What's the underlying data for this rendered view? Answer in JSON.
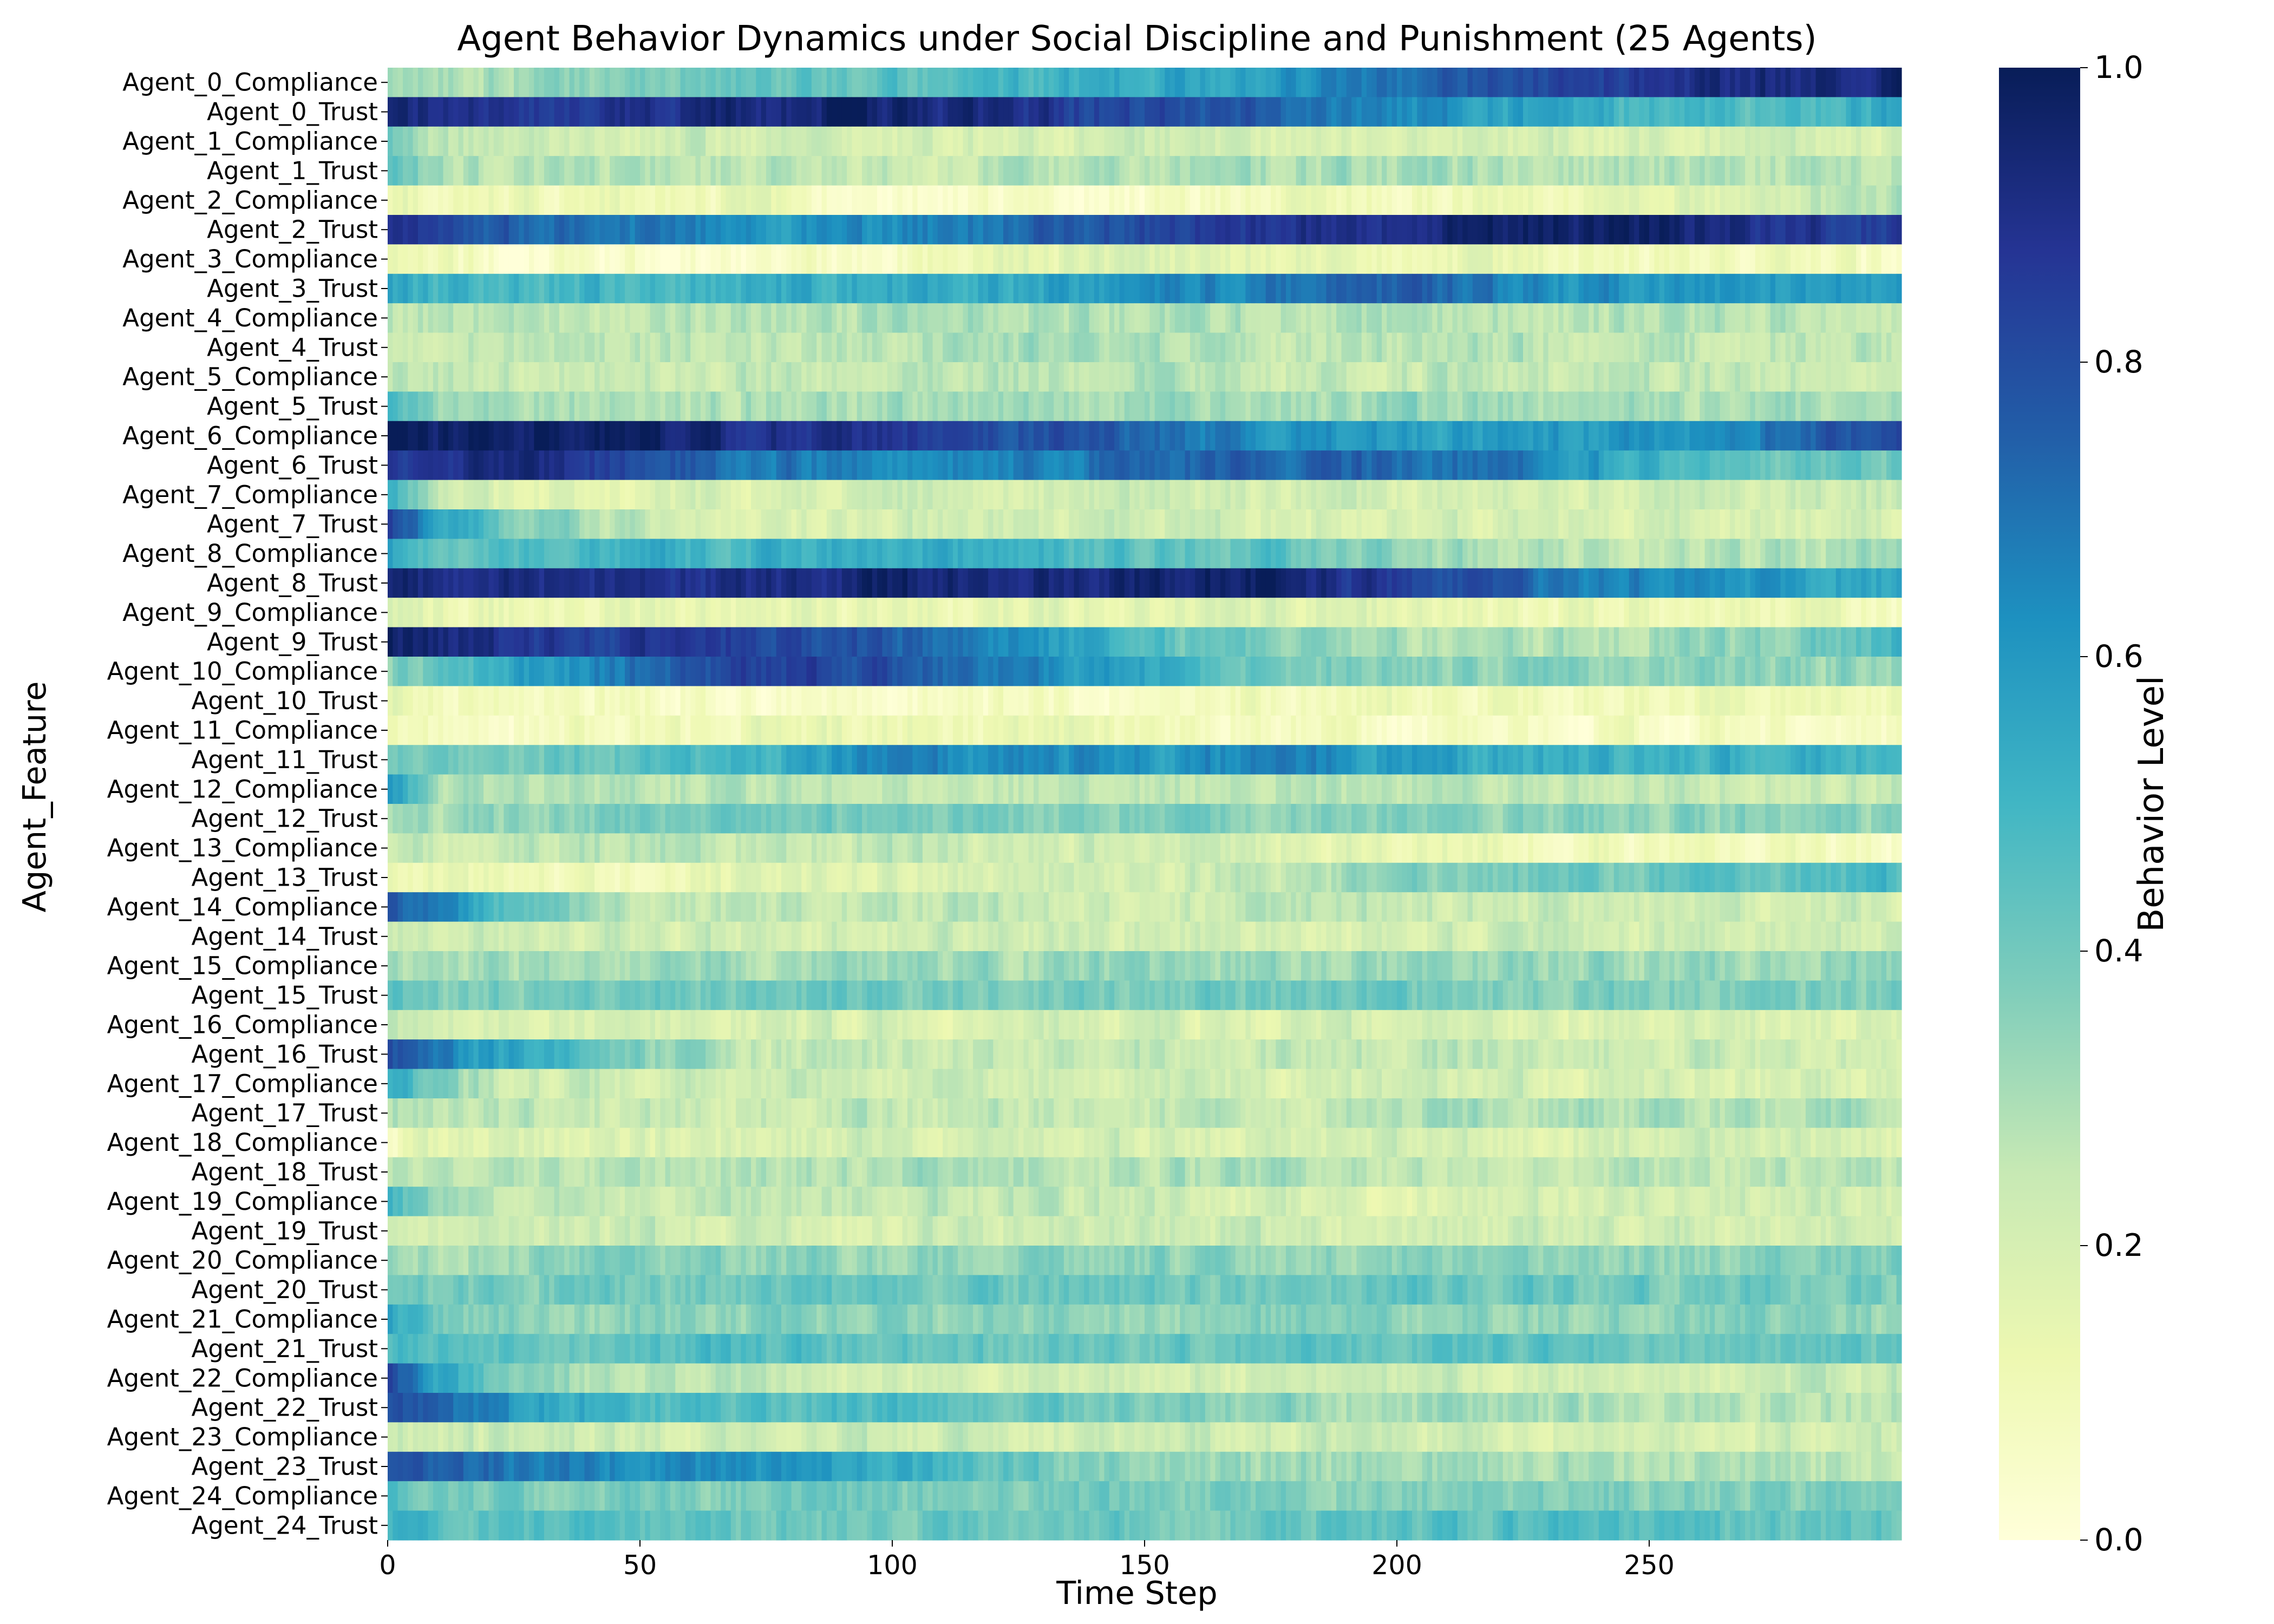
{
  "chart_data": {
    "type": "heatmap",
    "title": "Agent Behavior Dynamics under Social Discipline and Punishment (25 Agents)",
    "xlabel": "Time Step",
    "ylabel": "Agent_Feature",
    "xlim": [
      0,
      300
    ],
    "x_ticks": [
      "0",
      "50",
      "100",
      "150",
      "200",
      "250"
    ],
    "colorscale": "YlGnBu",
    "colorbar": {
      "label": "Behavior Level",
      "range": [
        0.0,
        1.0
      ],
      "ticks": [
        "0.0",
        "0.2",
        "0.4",
        "0.6",
        "0.8",
        "1.0"
      ]
    },
    "knot_steps": [
      0,
      10,
      25,
      50,
      75,
      100,
      125,
      150,
      175,
      200,
      225,
      250,
      275,
      299
    ],
    "rows": [
      {
        "label": "Agent_0_Compliance",
        "values": [
          0.3,
          0.3,
          0.32,
          0.38,
          0.45,
          0.42,
          0.48,
          0.55,
          0.6,
          0.7,
          0.82,
          0.88,
          0.92,
          0.97
        ]
      },
      {
        "label": "Agent_0_Trust",
        "values": [
          0.95,
          0.92,
          0.88,
          0.9,
          0.93,
          0.96,
          0.88,
          0.8,
          0.75,
          0.65,
          0.55,
          0.48,
          0.45,
          0.55
        ]
      },
      {
        "label": "Agent_1_Compliance",
        "values": [
          0.4,
          0.25,
          0.22,
          0.22,
          0.2,
          0.2,
          0.2,
          0.22,
          0.2,
          0.2,
          0.2,
          0.2,
          0.2,
          0.2
        ]
      },
      {
        "label": "Agent_1_Trust",
        "values": [
          0.45,
          0.3,
          0.28,
          0.28,
          0.27,
          0.25,
          0.27,
          0.28,
          0.3,
          0.3,
          0.28,
          0.28,
          0.27,
          0.27
        ]
      },
      {
        "label": "Agent_2_Compliance",
        "values": [
          0.15,
          0.12,
          0.12,
          0.12,
          0.1,
          0.05,
          0.05,
          0.05,
          0.1,
          0.1,
          0.12,
          0.15,
          0.22,
          0.3
        ]
      },
      {
        "label": "Agent_2_Trust",
        "values": [
          0.85,
          0.8,
          0.75,
          0.68,
          0.6,
          0.62,
          0.72,
          0.82,
          0.88,
          0.94,
          0.96,
          0.97,
          0.9,
          0.85
        ]
      },
      {
        "label": "Agent_3_Compliance",
        "values": [
          0.12,
          0.08,
          0.06,
          0.05,
          0.04,
          0.08,
          0.15,
          0.18,
          0.15,
          0.12,
          0.12,
          0.1,
          0.08,
          0.05
        ]
      },
      {
        "label": "Agent_3_Trust",
        "values": [
          0.55,
          0.5,
          0.48,
          0.5,
          0.52,
          0.55,
          0.55,
          0.62,
          0.7,
          0.75,
          0.65,
          0.6,
          0.58,
          0.58
        ]
      },
      {
        "label": "Agent_4_Compliance",
        "values": [
          0.28,
          0.28,
          0.25,
          0.25,
          0.28,
          0.3,
          0.3,
          0.28,
          0.28,
          0.28,
          0.27,
          0.28,
          0.3,
          0.27
        ]
      },
      {
        "label": "Agent_4_Trust",
        "values": [
          0.25,
          0.25,
          0.27,
          0.25,
          0.25,
          0.28,
          0.3,
          0.28,
          0.25,
          0.27,
          0.27,
          0.25,
          0.27,
          0.25
        ]
      },
      {
        "label": "Agent_5_Compliance",
        "values": [
          0.28,
          0.25,
          0.25,
          0.25,
          0.25,
          0.25,
          0.27,
          0.27,
          0.25,
          0.25,
          0.25,
          0.25,
          0.25,
          0.25
        ]
      },
      {
        "label": "Agent_5_Trust",
        "values": [
          0.5,
          0.3,
          0.3,
          0.3,
          0.3,
          0.3,
          0.3,
          0.32,
          0.3,
          0.32,
          0.32,
          0.3,
          0.3,
          0.3
        ]
      },
      {
        "label": "Agent_6_Compliance",
        "values": [
          0.98,
          0.98,
          0.98,
          0.96,
          0.9,
          0.88,
          0.8,
          0.72,
          0.62,
          0.58,
          0.58,
          0.62,
          0.7,
          0.85
        ]
      },
      {
        "label": "Agent_6_Trust",
        "values": [
          0.85,
          0.88,
          0.92,
          0.8,
          0.7,
          0.65,
          0.68,
          0.72,
          0.74,
          0.72,
          0.68,
          0.52,
          0.42,
          0.4
        ]
      },
      {
        "label": "Agent_7_Compliance",
        "values": [
          0.5,
          0.25,
          0.15,
          0.18,
          0.2,
          0.22,
          0.22,
          0.22,
          0.22,
          0.22,
          0.22,
          0.22,
          0.22,
          0.22
        ]
      },
      {
        "label": "Agent_7_Trust",
        "values": [
          0.82,
          0.58,
          0.38,
          0.25,
          0.2,
          0.2,
          0.22,
          0.22,
          0.2,
          0.2,
          0.2,
          0.2,
          0.2,
          0.2
        ]
      },
      {
        "label": "Agent_8_Compliance",
        "values": [
          0.58,
          0.42,
          0.48,
          0.52,
          0.5,
          0.55,
          0.5,
          0.45,
          0.45,
          0.35,
          0.28,
          0.28,
          0.28,
          0.3
        ]
      },
      {
        "label": "Agent_8_Trust",
        "values": [
          0.95,
          0.9,
          0.92,
          0.88,
          0.9,
          0.96,
          0.92,
          0.95,
          0.96,
          0.85,
          0.72,
          0.65,
          0.6,
          0.55
        ]
      },
      {
        "label": "Agent_9_Compliance",
        "values": [
          0.22,
          0.15,
          0.12,
          0.15,
          0.15,
          0.12,
          0.15,
          0.15,
          0.18,
          0.15,
          0.12,
          0.12,
          0.12,
          0.1
        ]
      },
      {
        "label": "Agent_9_Trust",
        "values": [
          0.98,
          0.95,
          0.88,
          0.85,
          0.85,
          0.75,
          0.62,
          0.45,
          0.35,
          0.3,
          0.28,
          0.3,
          0.35,
          0.5
        ]
      },
      {
        "label": "Agent_10_Compliance",
        "values": [
          0.35,
          0.45,
          0.55,
          0.7,
          0.85,
          0.8,
          0.65,
          0.55,
          0.4,
          0.35,
          0.35,
          0.35,
          0.35,
          0.35
        ]
      },
      {
        "label": "Agent_10_Trust",
        "values": [
          0.15,
          0.1,
          0.08,
          0.08,
          0.06,
          0.05,
          0.06,
          0.08,
          0.1,
          0.12,
          0.12,
          0.12,
          0.12,
          0.12
        ]
      },
      {
        "label": "Agent_11_Compliance",
        "values": [
          0.1,
          0.06,
          0.05,
          0.08,
          0.12,
          0.12,
          0.12,
          0.1,
          0.08,
          0.06,
          0.06,
          0.08,
          0.06,
          0.06
        ]
      },
      {
        "label": "Agent_11_Trust",
        "values": [
          0.42,
          0.38,
          0.4,
          0.45,
          0.52,
          0.65,
          0.62,
          0.6,
          0.68,
          0.58,
          0.52,
          0.5,
          0.52,
          0.52
        ]
      },
      {
        "label": "Agent_12_Compliance",
        "values": [
          0.6,
          0.3,
          0.28,
          0.28,
          0.27,
          0.25,
          0.25,
          0.25,
          0.27,
          0.27,
          0.25,
          0.25,
          0.25,
          0.25
        ]
      },
      {
        "label": "Agent_12_Trust",
        "values": [
          0.32,
          0.3,
          0.35,
          0.38,
          0.38,
          0.38,
          0.38,
          0.38,
          0.38,
          0.38,
          0.36,
          0.36,
          0.35,
          0.35
        ]
      },
      {
        "label": "Agent_13_Compliance",
        "values": [
          0.25,
          0.25,
          0.25,
          0.28,
          0.25,
          0.25,
          0.22,
          0.22,
          0.2,
          0.15,
          0.12,
          0.1,
          0.1,
          0.08
        ]
      },
      {
        "label": "Agent_13_Trust",
        "values": [
          0.15,
          0.12,
          0.1,
          0.1,
          0.15,
          0.2,
          0.22,
          0.22,
          0.25,
          0.35,
          0.4,
          0.42,
          0.45,
          0.48
        ]
      },
      {
        "label": "Agent_14_Compliance",
        "values": [
          0.82,
          0.62,
          0.45,
          0.25,
          0.25,
          0.25,
          0.25,
          0.22,
          0.25,
          0.25,
          0.25,
          0.22,
          0.22,
          0.22
        ]
      },
      {
        "label": "Agent_14_Trust",
        "values": [
          0.22,
          0.22,
          0.22,
          0.22,
          0.22,
          0.22,
          0.22,
          0.22,
          0.2,
          0.22,
          0.22,
          0.22,
          0.22,
          0.22
        ]
      },
      {
        "label": "Agent_15_Compliance",
        "values": [
          0.3,
          0.3,
          0.32,
          0.32,
          0.32,
          0.32,
          0.32,
          0.32,
          0.32,
          0.32,
          0.32,
          0.32,
          0.32,
          0.35
        ]
      },
      {
        "label": "Agent_15_Trust",
        "values": [
          0.45,
          0.38,
          0.38,
          0.4,
          0.42,
          0.4,
          0.4,
          0.4,
          0.4,
          0.4,
          0.38,
          0.38,
          0.38,
          0.38
        ]
      },
      {
        "label": "Agent_16_Compliance",
        "values": [
          0.25,
          0.22,
          0.2,
          0.2,
          0.2,
          0.2,
          0.2,
          0.2,
          0.2,
          0.2,
          0.2,
          0.2,
          0.2,
          0.2
        ]
      },
      {
        "label": "Agent_16_Trust",
        "values": [
          0.8,
          0.65,
          0.55,
          0.38,
          0.25,
          0.25,
          0.25,
          0.25,
          0.25,
          0.25,
          0.25,
          0.25,
          0.22,
          0.22
        ]
      },
      {
        "label": "Agent_17_Compliance",
        "values": [
          0.55,
          0.35,
          0.22,
          0.22,
          0.22,
          0.22,
          0.22,
          0.22,
          0.2,
          0.2,
          0.2,
          0.2,
          0.2,
          0.2
        ]
      },
      {
        "label": "Agent_17_Trust",
        "values": [
          0.3,
          0.28,
          0.25,
          0.25,
          0.25,
          0.25,
          0.25,
          0.25,
          0.25,
          0.28,
          0.32,
          0.3,
          0.28,
          0.28
        ]
      },
      {
        "label": "Agent_18_Compliance",
        "values": [
          0.1,
          0.15,
          0.18,
          0.18,
          0.2,
          0.2,
          0.2,
          0.2,
          0.2,
          0.2,
          0.2,
          0.2,
          0.2,
          0.2
        ]
      },
      {
        "label": "Agent_18_Trust",
        "values": [
          0.25,
          0.25,
          0.28,
          0.28,
          0.28,
          0.3,
          0.3,
          0.28,
          0.3,
          0.25,
          0.25,
          0.25,
          0.25,
          0.25
        ]
      },
      {
        "label": "Agent_19_Compliance",
        "values": [
          0.48,
          0.3,
          0.25,
          0.25,
          0.25,
          0.25,
          0.25,
          0.22,
          0.2,
          0.15,
          0.2,
          0.22,
          0.22,
          0.22
        ]
      },
      {
        "label": "Agent_19_Trust",
        "values": [
          0.22,
          0.22,
          0.22,
          0.22,
          0.22,
          0.22,
          0.22,
          0.22,
          0.22,
          0.22,
          0.22,
          0.22,
          0.22,
          0.22
        ]
      },
      {
        "label": "Agent_20_Compliance",
        "values": [
          0.32,
          0.32,
          0.35,
          0.35,
          0.35,
          0.35,
          0.35,
          0.35,
          0.35,
          0.35,
          0.35,
          0.35,
          0.35,
          0.38
        ]
      },
      {
        "label": "Agent_20_Trust",
        "values": [
          0.38,
          0.38,
          0.38,
          0.4,
          0.4,
          0.4,
          0.4,
          0.4,
          0.4,
          0.42,
          0.42,
          0.4,
          0.4,
          0.4
        ]
      },
      {
        "label": "Agent_21_Compliance",
        "values": [
          0.55,
          0.38,
          0.35,
          0.35,
          0.35,
          0.35,
          0.35,
          0.35,
          0.35,
          0.35,
          0.35,
          0.35,
          0.35,
          0.32
        ]
      },
      {
        "label": "Agent_21_Trust",
        "values": [
          0.48,
          0.45,
          0.45,
          0.45,
          0.45,
          0.42,
          0.42,
          0.42,
          0.42,
          0.45,
          0.45,
          0.42,
          0.4,
          0.42
        ]
      },
      {
        "label": "Agent_22_Compliance",
        "values": [
          0.82,
          0.55,
          0.35,
          0.25,
          0.25,
          0.22,
          0.22,
          0.22,
          0.22,
          0.22,
          0.22,
          0.22,
          0.22,
          0.25
        ]
      },
      {
        "label": "Agent_22_Trust",
        "values": [
          0.78,
          0.72,
          0.58,
          0.48,
          0.45,
          0.48,
          0.42,
          0.38,
          0.35,
          0.3,
          0.3,
          0.3,
          0.28,
          0.28
        ]
      },
      {
        "label": "Agent_23_Compliance",
        "values": [
          0.22,
          0.22,
          0.22,
          0.22,
          0.22,
          0.22,
          0.22,
          0.22,
          0.22,
          0.22,
          0.22,
          0.22,
          0.22,
          0.22
        ]
      },
      {
        "label": "Agent_23_Trust",
        "values": [
          0.75,
          0.72,
          0.7,
          0.65,
          0.58,
          0.52,
          0.42,
          0.35,
          0.32,
          0.32,
          0.3,
          0.3,
          0.28,
          0.28
        ]
      },
      {
        "label": "Agent_24_Compliance",
        "values": [
          0.45,
          0.4,
          0.38,
          0.38,
          0.38,
          0.38,
          0.38,
          0.38,
          0.38,
          0.38,
          0.38,
          0.38,
          0.38,
          0.38
        ]
      },
      {
        "label": "Agent_24_Trust",
        "values": [
          0.5,
          0.45,
          0.45,
          0.45,
          0.42,
          0.42,
          0.42,
          0.42,
          0.42,
          0.45,
          0.45,
          0.45,
          0.42,
          0.42
        ]
      }
    ]
  }
}
